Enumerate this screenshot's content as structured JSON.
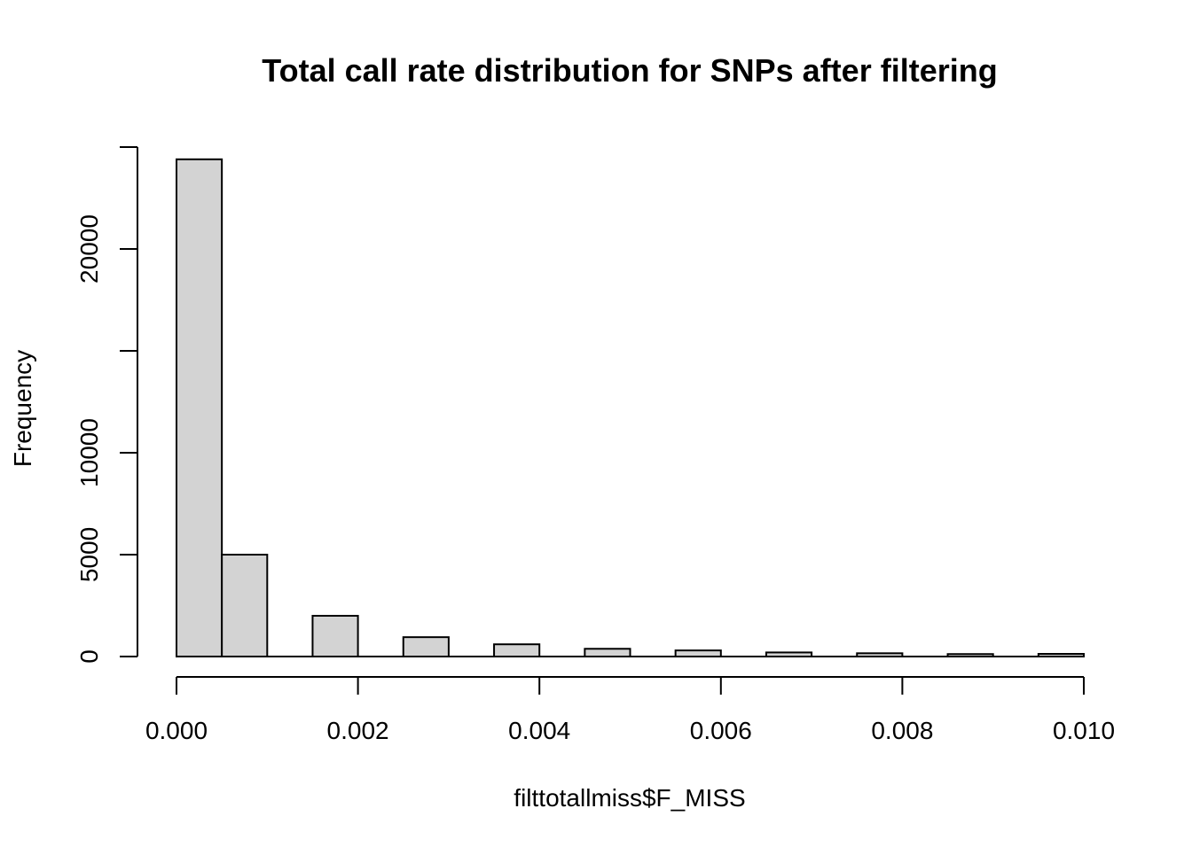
{
  "chart_data": {
    "type": "bar",
    "title": "Total call rate distribution for SNPs after filtering",
    "xlabel": "filttotallmiss$F_MISS",
    "ylabel": "Frequency",
    "xlim": [
      0,
      0.01
    ],
    "ylim": [
      0,
      25000
    ],
    "x_ticks": [
      {
        "value": 0.0,
        "label": "0.000"
      },
      {
        "value": 0.002,
        "label": "0.002"
      },
      {
        "value": 0.004,
        "label": "0.004"
      },
      {
        "value": 0.006,
        "label": "0.006"
      },
      {
        "value": 0.008,
        "label": "0.008"
      },
      {
        "value": 0.01,
        "label": "0.010"
      }
    ],
    "y_ticks": [
      {
        "value": 0,
        "label": "0"
      },
      {
        "value": 5000,
        "label": "5000"
      },
      {
        "value": 10000,
        "label": "10000"
      },
      {
        "value": 15000,
        "label": ""
      },
      {
        "value": 20000,
        "label": "20000"
      },
      {
        "value": 25000,
        "label": ""
      }
    ],
    "bins": [
      {
        "x0": 0.0,
        "x1": 0.0005,
        "count": 24400
      },
      {
        "x0": 0.0005,
        "x1": 0.001,
        "count": 5000
      },
      {
        "x0": 0.001,
        "x1": 0.0015,
        "count": 0
      },
      {
        "x0": 0.0015,
        "x1": 0.002,
        "count": 2000
      },
      {
        "x0": 0.002,
        "x1": 0.0025,
        "count": 0
      },
      {
        "x0": 0.0025,
        "x1": 0.003,
        "count": 950
      },
      {
        "x0": 0.003,
        "x1": 0.0035,
        "count": 0
      },
      {
        "x0": 0.0035,
        "x1": 0.004,
        "count": 600
      },
      {
        "x0": 0.004,
        "x1": 0.0045,
        "count": 0
      },
      {
        "x0": 0.0045,
        "x1": 0.005,
        "count": 380
      },
      {
        "x0": 0.005,
        "x1": 0.0055,
        "count": 0
      },
      {
        "x0": 0.0055,
        "x1": 0.006,
        "count": 300
      },
      {
        "x0": 0.006,
        "x1": 0.0065,
        "count": 0
      },
      {
        "x0": 0.0065,
        "x1": 0.007,
        "count": 200
      },
      {
        "x0": 0.007,
        "x1": 0.0075,
        "count": 0
      },
      {
        "x0": 0.0075,
        "x1": 0.008,
        "count": 160
      },
      {
        "x0": 0.008,
        "x1": 0.0085,
        "count": 0
      },
      {
        "x0": 0.0085,
        "x1": 0.009,
        "count": 120
      },
      {
        "x0": 0.009,
        "x1": 0.0095,
        "count": 0
      },
      {
        "x0": 0.0095,
        "x1": 0.01,
        "count": 130
      }
    ],
    "bar_fill": "#d3d3d3",
    "bar_stroke": "#000000",
    "grid": false,
    "legend": "none"
  }
}
